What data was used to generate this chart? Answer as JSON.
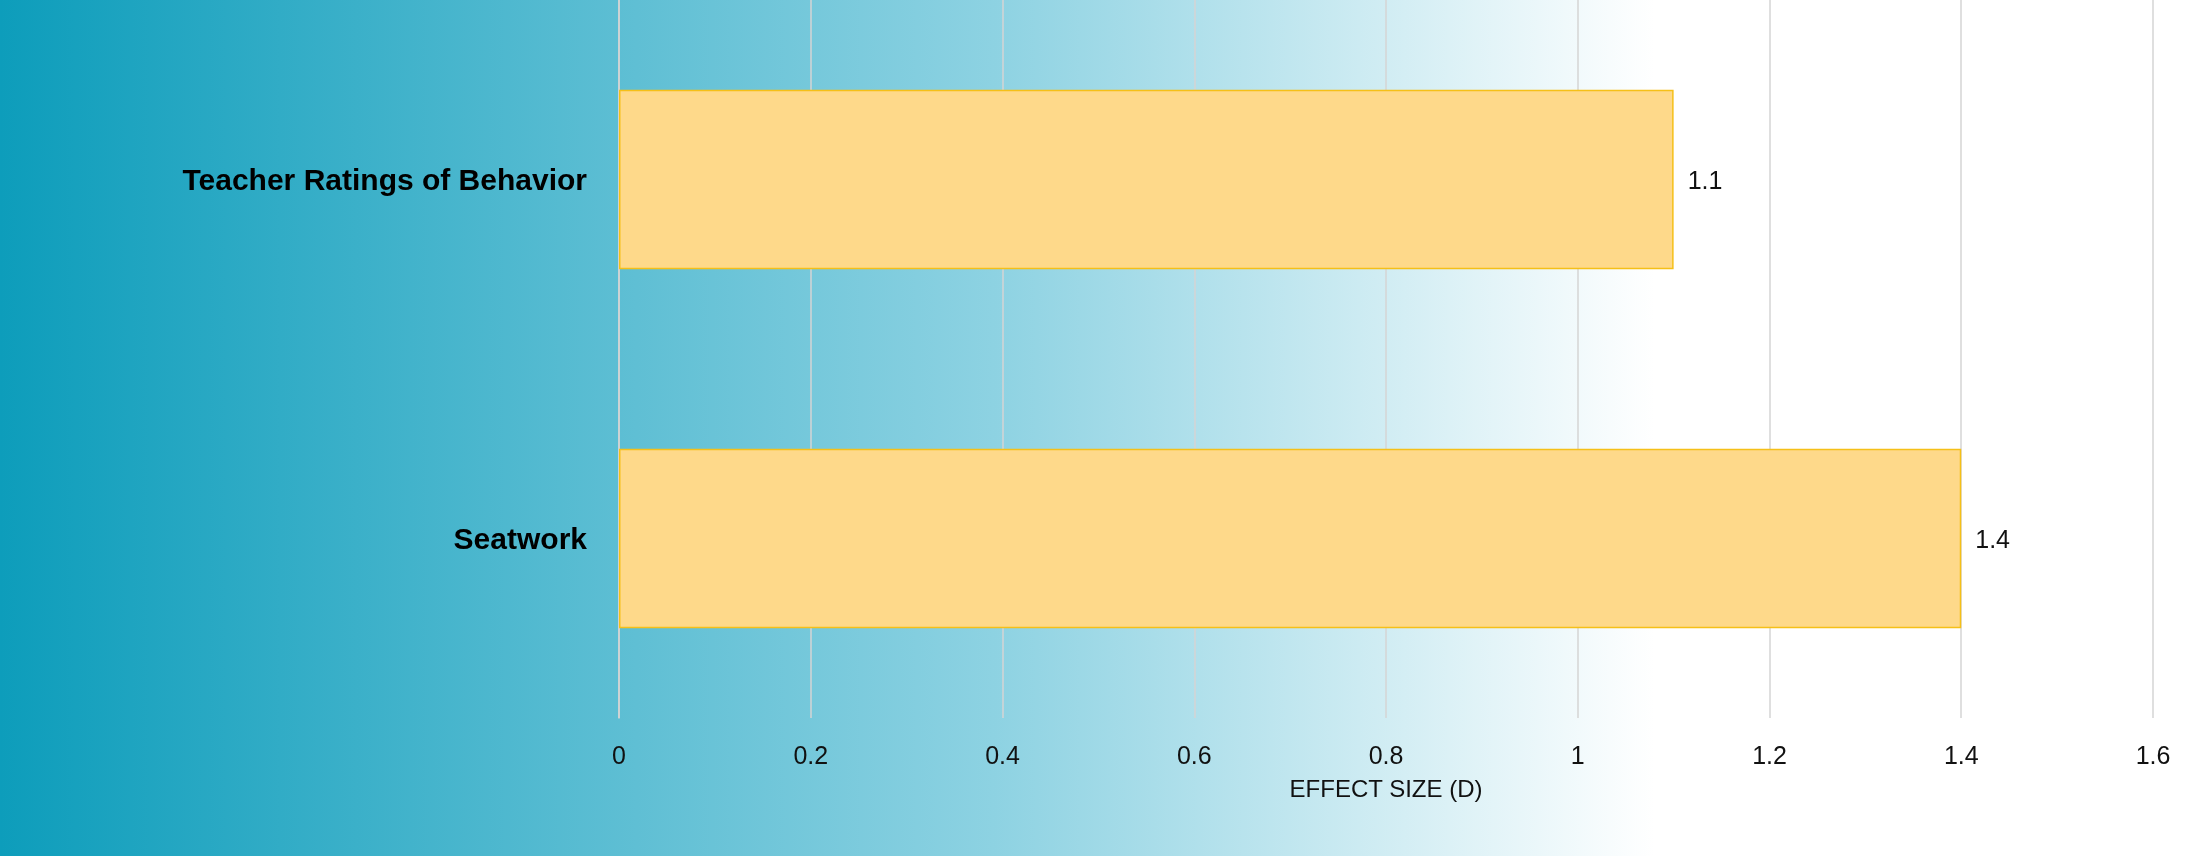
{
  "chart_data": {
    "type": "bar",
    "orientation": "horizontal",
    "xlabel": "EFFECT SIZE (D)",
    "categories": [
      "Teacher Ratings of Behavior",
      "Seatwork"
    ],
    "values": [
      1.1,
      1.4
    ],
    "color": "#fed98a",
    "xlim": [
      0,
      1.6
    ],
    "xticks": [
      0,
      0.2,
      0.4,
      0.6,
      0.8,
      1,
      1.2,
      1.4,
      1.6
    ],
    "grid": "x",
    "data_labels": true
  }
}
